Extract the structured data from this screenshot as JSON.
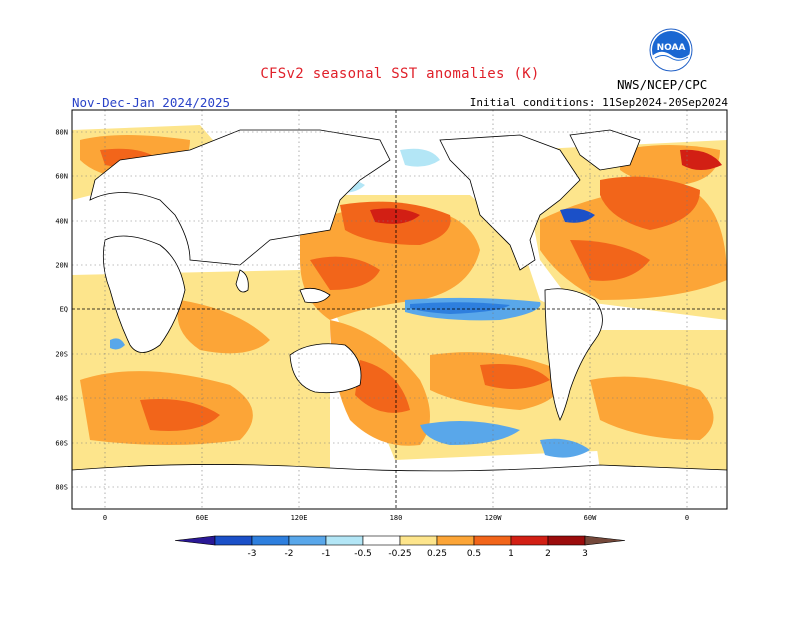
{
  "header": {
    "title": "CFSv2 seasonal SST anomalies (K)",
    "season": "Nov-Dec-Jan 2024/2025",
    "initial_conditions": "Initial conditions: 11Sep2024-20Sep2024",
    "agency": "NWS/NCEP/CPC",
    "logo_text": "NOAA"
  },
  "map": {
    "lat_labels": [
      "80N",
      "60N",
      "40N",
      "20N",
      "EQ",
      "20S",
      "40S",
      "60S",
      "80S"
    ],
    "lon_labels": [
      "0",
      "60E",
      "120E",
      "180",
      "120W",
      "60W",
      "0"
    ]
  },
  "colorbar": {
    "labels": [
      "-3",
      "-2",
      "-1",
      "-0.5",
      "-0.25",
      "0.25",
      "0.5",
      "1",
      "2",
      "3"
    ],
    "colors": [
      "#2a1896",
      "#1b50c8",
      "#2e7fde",
      "#59a7ea",
      "#b3e6f6",
      "#ffffff",
      "#fde58c",
      "#fca537",
      "#f2651a",
      "#d21f14",
      "#9b0c0c",
      "#74483a"
    ]
  }
}
